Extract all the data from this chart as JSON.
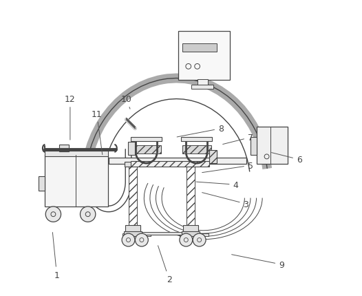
{
  "background_color": "#ffffff",
  "line_color": "#444444",
  "label_color": "#444444",
  "fig_width": 5.26,
  "fig_height": 4.31,
  "dpi": 100,
  "labels_data": [
    [
      1,
      0.08,
      0.07,
      0.065,
      0.22
    ],
    [
      2,
      0.46,
      0.055,
      0.42,
      0.175
    ],
    [
      3,
      0.72,
      0.31,
      0.565,
      0.35
    ],
    [
      4,
      0.685,
      0.375,
      0.545,
      0.385
    ],
    [
      5,
      0.735,
      0.44,
      0.565,
      0.415
    ],
    [
      6,
      0.9,
      0.46,
      0.8,
      0.485
    ],
    [
      7,
      0.735,
      0.535,
      0.635,
      0.51
    ],
    [
      8,
      0.635,
      0.565,
      0.48,
      0.535
    ],
    [
      9,
      0.84,
      0.105,
      0.665,
      0.14
    ],
    [
      10,
      0.315,
      0.665,
      0.33,
      0.625
    ],
    [
      11,
      0.215,
      0.615,
      0.235,
      0.47
    ],
    [
      12,
      0.125,
      0.665,
      0.125,
      0.52
    ]
  ]
}
